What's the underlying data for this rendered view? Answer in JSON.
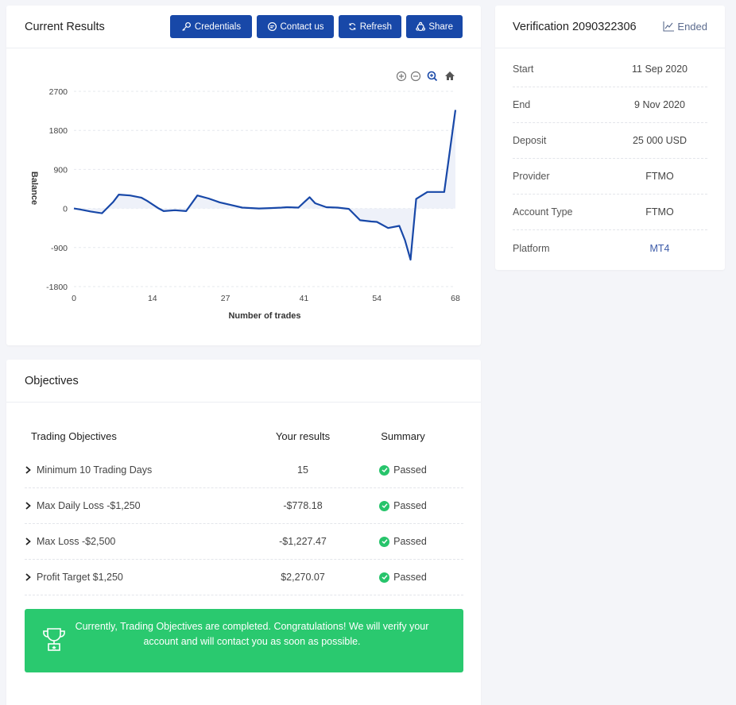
{
  "results": {
    "title": "Current Results",
    "buttons": {
      "credentials": "Credentials",
      "contact": "Contact us",
      "refresh": "Refresh",
      "share": "Share"
    }
  },
  "chart_data": {
    "type": "area",
    "title": "",
    "xlabel": "Number of trades",
    "ylabel": "Balance",
    "xlim": [
      0,
      68
    ],
    "ylim": [
      -1800,
      2700
    ],
    "x_ticks": [
      0,
      14,
      27,
      41,
      54,
      68
    ],
    "y_ticks": [
      2700,
      1800,
      900,
      0,
      -900,
      -1800
    ],
    "x_tick_labels": [
      "0",
      "14",
      "27",
      "41",
      "54",
      "68"
    ],
    "y_tick_labels": [
      "2700",
      "1800",
      "900",
      "0",
      "-900",
      "-1800"
    ],
    "line_color": "#1848a8",
    "area_color": "#eef1f9",
    "grid": true,
    "series": [
      {
        "x": [
          0,
          1,
          3,
          5,
          7,
          8,
          10,
          12,
          13,
          15,
          16,
          18,
          20,
          22,
          24,
          26,
          28,
          30,
          33,
          35,
          37,
          38,
          40,
          42,
          43,
          45,
          47,
          49,
          51,
          53,
          54,
          56,
          58,
          59,
          60,
          61,
          63,
          66,
          68
        ],
        "y": [
          0,
          -20,
          -70,
          -110,
          150,
          320,
          300,
          250,
          180,
          10,
          -60,
          -40,
          -60,
          300,
          230,
          140,
          80,
          20,
          0,
          10,
          20,
          30,
          20,
          260,
          120,
          30,
          20,
          -10,
          -270,
          -300,
          -310,
          -450,
          -400,
          -730,
          -1180,
          220,
          380,
          380,
          2270
        ]
      }
    ],
    "zoom_controls": [
      "zoom-in",
      "zoom-out",
      "zoom-selection",
      "reset-home"
    ]
  },
  "verification": {
    "title": "Verification 2090322306",
    "status": "Ended",
    "rows": [
      {
        "label": "Start",
        "value": "11 Sep 2020"
      },
      {
        "label": "End",
        "value": "9 Nov 2020"
      },
      {
        "label": "Deposit",
        "value": "25 000 USD"
      },
      {
        "label": "Provider",
        "value": "FTMO"
      },
      {
        "label": "Account Type",
        "value": "FTMO"
      },
      {
        "label": "Platform",
        "value": "MT4"
      }
    ]
  },
  "objectives": {
    "title": "Objectives",
    "headers": {
      "objective": "Trading Objectives",
      "result": "Your results",
      "summary": "Summary"
    },
    "rows": [
      {
        "name": "Minimum 10 Trading Days",
        "result": "15",
        "summary": "Passed"
      },
      {
        "name": "Max Daily Loss -$1,250",
        "result": "-$778.18",
        "summary": "Passed"
      },
      {
        "name": "Max Loss -$2,500",
        "result": "-$1,227.47",
        "summary": "Passed"
      },
      {
        "name": "Profit Target $1,250",
        "result": "$2,270.07",
        "summary": "Passed"
      }
    ],
    "banner": "Currently, Trading Objectives are completed. Congratulations! We will verify your account and will contact you as soon as possible."
  },
  "colors": {
    "primary": "#1848a8",
    "success": "#27c46b",
    "link": "#3b5aa8"
  }
}
